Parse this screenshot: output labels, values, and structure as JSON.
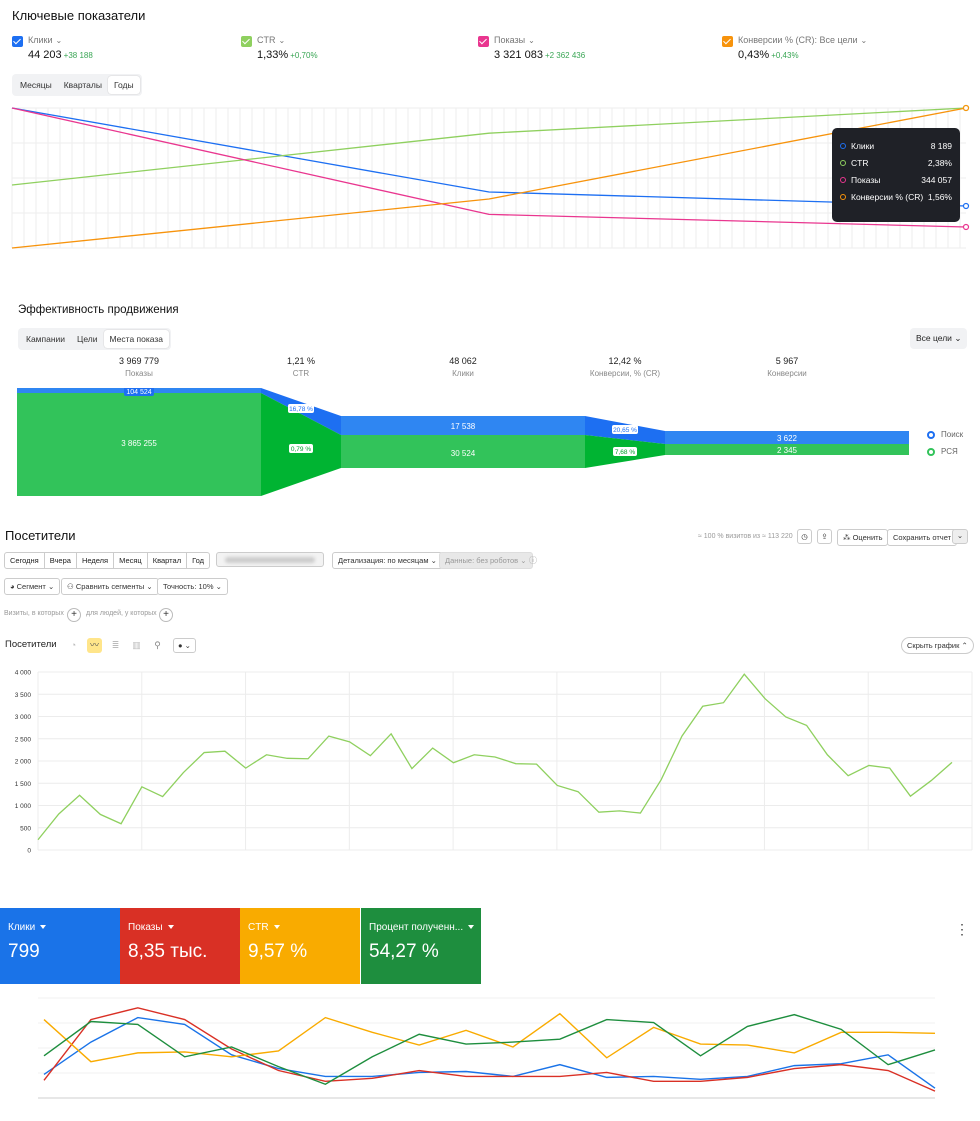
{
  "section1": {
    "title": "Ключевые показатели",
    "metrics": [
      {
        "label": "Клики",
        "value": "44 203",
        "delta": "+38 188",
        "color": "#1d6ff2"
      },
      {
        "label": "CTR",
        "value": "1,33%",
        "delta": "+0,70%",
        "color": "#8fd05f"
      },
      {
        "label": "Показы",
        "value": "3 321 083",
        "delta": "+2 362 436",
        "color": "#e9368f"
      },
      {
        "label": "Конверсии % (CR): Все цели",
        "value": "0,43%",
        "delta": "+0,43%",
        "color": "#f7930c"
      }
    ],
    "periods": [
      "Месяцы",
      "Кварталы",
      "Годы"
    ],
    "tooltip": [
      {
        "name": "Клики",
        "value": "8 189"
      },
      {
        "name": "CTR",
        "value": "2,38%"
      },
      {
        "name": "Показы",
        "value": "344 057"
      },
      {
        "name": "Конверсии % (CR)",
        "value": "1,56%"
      }
    ]
  },
  "section2": {
    "title": "Эффективность продвижения",
    "tabs": [
      "Кампании",
      "Цели",
      "Места показа"
    ],
    "dropdown": "Все цели",
    "kpis": [
      {
        "value": "3 969 779",
        "label": "Показы"
      },
      {
        "value": "1,21 %",
        "label": "CTR"
      },
      {
        "value": "48 062",
        "label": "Клики"
      },
      {
        "value": "12,42 %",
        "label": "Конверсии, % (CR)"
      },
      {
        "value": "5 967",
        "label": "Конверсии"
      }
    ],
    "flow": {
      "shows_search": "104 524",
      "shows_rsya": "3 865 255",
      "ctr_search": "16,78 %",
      "ctr_rsya": "0,79 %",
      "clicks_search": "17 538",
      "clicks_rsya": "30 524",
      "cr_search": "20,65 %",
      "cr_rsya": "7,68 %",
      "conv_search": "3 622",
      "conv_rsya": "2 345"
    },
    "legend": [
      {
        "label": "Поиск",
        "color": "#1d6ff2"
      },
      {
        "label": "РСЯ",
        "color": "#32c35a"
      }
    ]
  },
  "section3": {
    "title": "Посетители",
    "periods": [
      "Сегодня",
      "Вчера",
      "Неделя",
      "Месяц",
      "Квартал",
      "Год"
    ],
    "detail": "Детализация: по месяцам",
    "data_filter": "Данные: без роботов",
    "visits_note": "≈ 100 % визитов из ≈ 113 220",
    "rate_btn": "Оценить",
    "save_btn": "Сохранить отчет",
    "segment_btn": "Сегмент",
    "compare_btn": "Сравнить сегменты",
    "accuracy_btn": "Точность: 10%",
    "visits_where": "Визиты, в которых",
    "people_where": "для людей, у которых",
    "chart_label": "Посетители",
    "hide_chart": "Скрыть график"
  },
  "section4": {
    "cards": [
      {
        "label": "Клики",
        "value": "799",
        "color": "#1a73e8"
      },
      {
        "label": "Показы",
        "value": "8,35 тыс.",
        "color": "#d93025"
      },
      {
        "label": "CTR",
        "value": "9,57 %",
        "color": "#f9ab00"
      },
      {
        "label": "Процент полученн...",
        "value": "54,27 %",
        "color": "#1e8e3e"
      }
    ],
    "menu_icon": "more-vert-icon"
  },
  "chart_data": [
    {
      "type": "line",
      "series": [
        {
          "name": "Клики",
          "color": "#1d6ff2",
          "values": [
            100,
            40,
            30
          ]
        },
        {
          "name": "CTR",
          "color": "#8fd05f",
          "values": [
            45,
            82,
            100
          ]
        },
        {
          "name": "Показы",
          "color": "#e9368f",
          "values": [
            100,
            24,
            15
          ]
        },
        {
          "name": "Конверсии % (CR)",
          "color": "#f7930c",
          "values": [
            0,
            35,
            100
          ]
        }
      ]
    },
    {
      "type": "line",
      "ylim": [
        0,
        4000
      ],
      "yticks": [
        "4 000",
        "3 500",
        "3 000",
        "2 500",
        "2 000",
        "1 500",
        "1 000",
        "500",
        "0"
      ],
      "series": [
        {
          "color": "#8fd05f",
          "values": [
            230,
            810,
            1230,
            800,
            590,
            1420,
            1200,
            1740,
            2190,
            2220,
            1840,
            2140,
            2060,
            2050,
            2560,
            2430,
            2120,
            2610,
            1830,
            2290,
            1960,
            2140,
            2090,
            1940,
            1930,
            1450,
            1310,
            850,
            880,
            830,
            1580,
            2560,
            3230,
            3310,
            3950,
            3400,
            2990,
            2800,
            2140,
            1670,
            1900,
            1840,
            1210,
            1560,
            1970
          ]
        }
      ]
    },
    {
      "type": "line",
      "series": [
        {
          "name": "Клики",
          "color": "#1a73e8",
          "values": [
            22,
            55,
            80,
            73,
            42,
            28,
            20,
            20,
            24,
            25,
            20,
            32,
            19,
            20,
            17,
            20,
            31,
            33,
            42,
            8
          ]
        },
        {
          "name": "Показы",
          "color": "#d93025",
          "values": [
            16,
            78,
            90,
            78,
            48,
            26,
            15,
            18,
            26,
            20,
            20,
            20,
            24,
            15,
            15,
            19,
            28,
            32,
            26,
            5
          ]
        },
        {
          "name": "CTR",
          "color": "#f9ab00",
          "values": [
            78,
            35,
            44,
            45,
            40,
            46,
            80,
            65,
            52,
            67,
            50,
            84,
            39,
            70,
            53,
            52,
            44,
            65,
            65,
            64
          ]
        },
        {
          "name": "Процент полученн...",
          "color": "#1e8e3e",
          "values": [
            41,
            76,
            73,
            40,
            50,
            30,
            12,
            40,
            63,
            53,
            55,
            58,
            78,
            75,
            41,
            71,
            83,
            68,
            32,
            47
          ]
        }
      ]
    }
  ]
}
